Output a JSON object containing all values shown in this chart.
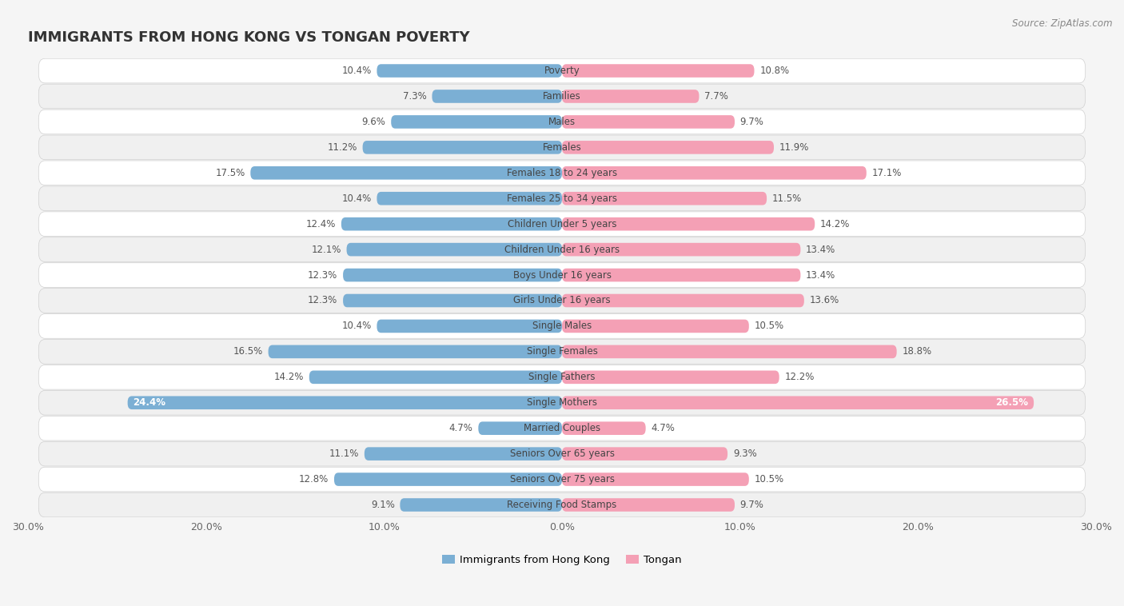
{
  "title": "IMMIGRANTS FROM HONG KONG VS TONGAN POVERTY",
  "source": "Source: ZipAtlas.com",
  "categories": [
    "Poverty",
    "Families",
    "Males",
    "Females",
    "Females 18 to 24 years",
    "Females 25 to 34 years",
    "Children Under 5 years",
    "Children Under 16 years",
    "Boys Under 16 years",
    "Girls Under 16 years",
    "Single Males",
    "Single Females",
    "Single Fathers",
    "Single Mothers",
    "Married Couples",
    "Seniors Over 65 years",
    "Seniors Over 75 years",
    "Receiving Food Stamps"
  ],
  "hk_values": [
    10.4,
    7.3,
    9.6,
    11.2,
    17.5,
    10.4,
    12.4,
    12.1,
    12.3,
    12.3,
    10.4,
    16.5,
    14.2,
    24.4,
    4.7,
    11.1,
    12.8,
    9.1
  ],
  "tongan_values": [
    10.8,
    7.7,
    9.7,
    11.9,
    17.1,
    11.5,
    14.2,
    13.4,
    13.4,
    13.6,
    10.5,
    18.8,
    12.2,
    26.5,
    4.7,
    9.3,
    10.5,
    9.7
  ],
  "hk_color": "#7bafd4",
  "tongan_color": "#f4a0b5",
  "hk_color_dark": "#5b9abf",
  "tongan_color_dark": "#e87090",
  "row_bg_even": "#ffffff",
  "row_bg_odd": "#f0f0f0",
  "figure_bg": "#f5f5f5",
  "xlim": 30.0,
  "bar_height": 0.52,
  "legend_hk": "Immigrants from Hong Kong",
  "legend_tongan": "Tongan",
  "title_fontsize": 13,
  "tick_fontsize": 9,
  "value_fontsize": 8.5,
  "category_fontsize": 8.5,
  "source_fontsize": 8.5
}
